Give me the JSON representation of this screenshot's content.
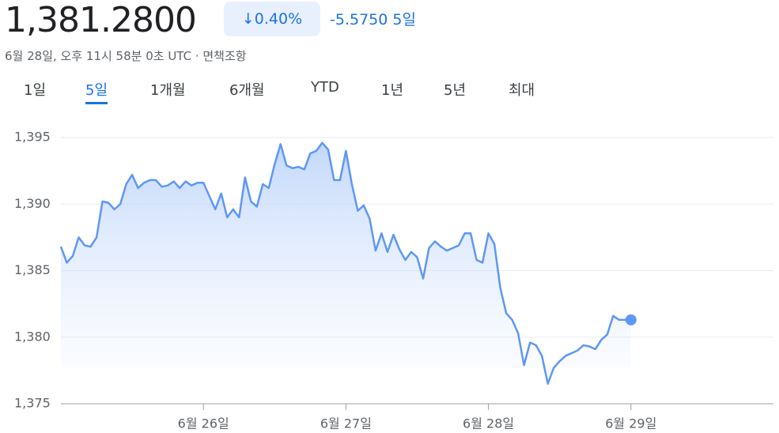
{
  "header": {
    "price": "1,381.2800",
    "change_percent": "0.40%",
    "change": "-5.5750",
    "period": "5일",
    "timestamp": "6월 28일, 오후 11시 58분 0초 UTC · 면책조항"
  },
  "tabs": {
    "items": [
      "1일",
      "5일",
      "1개월",
      "6개월",
      "YTD",
      "1년",
      "5년",
      "최대"
    ],
    "selected": 1
  },
  "chart_data": {
    "type": "line",
    "x": [
      0,
      1,
      2,
      3,
      4,
      5,
      6,
      7,
      8,
      9,
      10,
      11,
      12,
      13,
      14,
      15,
      16,
      17,
      18,
      19,
      20,
      21,
      22,
      23,
      24,
      25,
      26,
      27,
      28,
      29,
      30,
      31,
      32,
      33,
      34,
      35,
      36,
      37,
      38,
      39,
      40,
      41,
      42,
      43,
      44,
      45,
      46,
      47,
      48,
      49,
      50,
      51,
      52,
      53,
      54,
      55,
      56,
      57,
      58,
      59,
      60,
      61,
      62,
      63,
      64,
      65,
      66,
      67,
      68,
      69,
      70,
      71,
      72,
      73,
      74,
      75,
      76,
      77,
      78,
      79,
      80,
      81,
      82,
      83,
      84,
      85,
      86,
      87,
      88,
      89,
      90,
      91,
      92,
      93,
      94,
      95,
      96
    ],
    "series": [
      {
        "color": "#5e97f6",
        "values": [
          1386.8,
          1385.6,
          1386.1,
          1387.5,
          1386.9,
          1386.8,
          1387.5,
          1390.2,
          1390.1,
          1389.6,
          1390.0,
          1391.5,
          1392.2,
          1391.2,
          1391.6,
          1391.8,
          1391.8,
          1391.3,
          1391.4,
          1391.7,
          1391.2,
          1391.7,
          1391.4,
          1391.6,
          1391.6,
          1390.6,
          1389.6,
          1390.8,
          1389.0,
          1389.6,
          1389.0,
          1392.0,
          1390.2,
          1389.8,
          1391.5,
          1391.2,
          1393.0,
          1394.5,
          1392.9,
          1392.7,
          1392.8,
          1392.6,
          1393.8,
          1394.0,
          1394.6,
          1394.1,
          1391.8,
          1391.8,
          1394.0,
          1391.5,
          1389.5,
          1389.9,
          1388.9,
          1386.5,
          1387.8,
          1386.4,
          1387.7,
          1386.6,
          1385.8,
          1386.4,
          1386.0,
          1384.4,
          1386.7,
          1387.2,
          1386.8,
          1386.5,
          1386.7,
          1386.9,
          1387.8,
          1387.8,
          1385.8,
          1385.6,
          1387.8,
          1387.0,
          1383.7,
          1381.8,
          1381.3,
          1380.3,
          1377.9,
          1379.6,
          1379.4,
          1378.6,
          1376.5,
          1377.7,
          1378.2,
          1378.6,
          1378.8,
          1379.0,
          1379.4,
          1379.3,
          1379.1,
          1379.8,
          1380.2,
          1381.6,
          1381.3,
          1381.3,
          1381.3
        ]
      }
    ],
    "xlim": [
      0,
      120
    ],
    "xticks": [
      {
        "value": 24,
        "label": "6월 26일"
      },
      {
        "value": 48,
        "label": "6월 27일"
      },
      {
        "value": 72,
        "label": "6월 28일"
      },
      {
        "value": 96,
        "label": "6월 29일"
      }
    ],
    "ylim": [
      1375,
      1395
    ],
    "yticks": [
      {
        "value": 1375,
        "label": "1,375"
      },
      {
        "value": 1380,
        "label": "1,380"
      },
      {
        "value": 1385,
        "label": "1,385"
      },
      {
        "value": 1390,
        "label": "1,390"
      },
      {
        "value": 1395,
        "label": "1,395"
      }
    ],
    "grid": true
  }
}
